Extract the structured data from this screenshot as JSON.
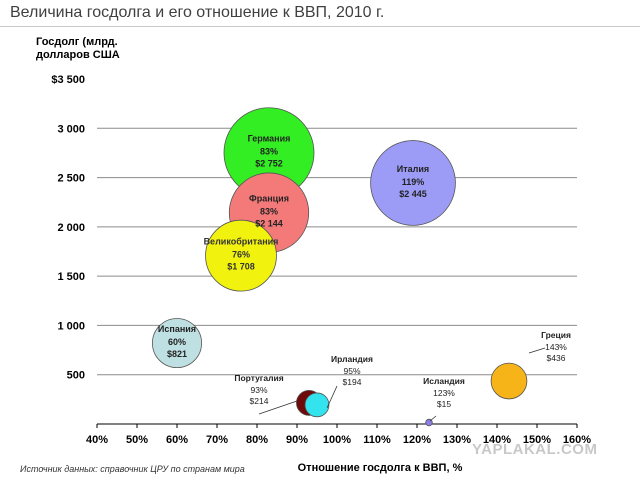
{
  "page": {
    "title": "Величина госдолга и его отношение к ВВП, 2010 г.",
    "source": "Источник данных: справочник ЦРУ по странам мира",
    "watermark": "YAPLAKAL.COM"
  },
  "chart_data": {
    "type": "scatter",
    "title": "Величина госдолга и его отношение к ВВП, 2010 г.",
    "ylabel": "Госдолг (млрд.\nдолларов США",
    "xlabel": "Отношение госдолга к ВВП, %",
    "xlim": [
      40,
      160
    ],
    "ylim": [
      0,
      3500
    ],
    "xticks": [
      40,
      50,
      60,
      70,
      80,
      90,
      100,
      110,
      120,
      130,
      140,
      150,
      160
    ],
    "xtick_labels": [
      "40%",
      "50%",
      "60%",
      "70%",
      "80%",
      "90%",
      "100%",
      "110%",
      "120%",
      "130%",
      "140%",
      "150%",
      "160%"
    ],
    "yticks": [
      500,
      1000,
      1500,
      2000,
      2500,
      3000,
      3500
    ],
    "ytick_labels": [
      "500",
      "1 000",
      "1 500",
      "2 000",
      "2 500",
      "3 000",
      "$3 500"
    ],
    "grid": "horizontal",
    "bubble_size_encodes": "debt",
    "points": [
      {
        "name": "Германия",
        "x": 83,
        "y": 2752,
        "pct_label": "83%",
        "debt_label": "$2 752",
        "color": "#33ee22",
        "label_inside": true
      },
      {
        "name": "Франция",
        "x": 83,
        "y": 2144,
        "pct_label": "83%",
        "debt_label": "$2 144",
        "color": "#f47a7a",
        "label_inside": true
      },
      {
        "name": "Италия",
        "x": 119,
        "y": 2445,
        "pct_label": "119%",
        "debt_label": "$2 445",
        "color": "#9c9cf7",
        "label_inside": true
      },
      {
        "name": "Великобритания",
        "x": 76,
        "y": 1708,
        "pct_label": "76%",
        "debt_label": "$1 708",
        "color": "#f2f20f",
        "label_inside": true
      },
      {
        "name": "Испания",
        "x": 60,
        "y": 821,
        "pct_label": "60%",
        "debt_label": "$821",
        "color": "#bfe0e2",
        "label_inside": true
      },
      {
        "name": "Португалия",
        "x": 93,
        "y": 214,
        "pct_label": "93%",
        "debt_label": "$214",
        "color": "#6e0a0a",
        "label_inside": false
      },
      {
        "name": "Ирландия",
        "x": 95,
        "y": 194,
        "pct_label": "95%",
        "debt_label": "$194",
        "color": "#33e4ee",
        "label_inside": false
      },
      {
        "name": "Исландия",
        "x": 123,
        "y": 15,
        "pct_label": "123%",
        "debt_label": "$15",
        "color": "#8a7de8",
        "label_inside": false
      },
      {
        "name": "Греция",
        "x": 143,
        "y": 436,
        "pct_label": "143%",
        "debt_label": "$436",
        "color": "#f6b418",
        "label_inside": false
      }
    ]
  }
}
